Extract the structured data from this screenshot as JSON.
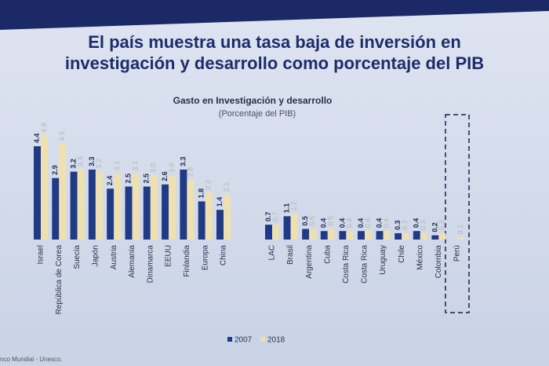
{
  "chart_data": {
    "type": "bar",
    "title": "El país muestra una tasa baja de inversión en investigación y desarrollo como porcentaje del PIB",
    "subtitle": "Gasto en Investigación y desarrollo",
    "subtitle2": "(Porcentaje del PIB)",
    "source": "nco Mundial - Unesco.",
    "categories": [
      "Israel",
      "República de Corea",
      "Suecia",
      "Japón",
      "Austria",
      "Alemania",
      "Dinamarca",
      "EEUU",
      "Finlandia",
      "Europa",
      "China",
      "LAC",
      "Brasil",
      "Argentina",
      "Cuba",
      "Costa Rica",
      "Costa Rica",
      "Uruguay",
      "Chile",
      "México",
      "Colombia",
      "Perú"
    ],
    "series": [
      {
        "name": "2007",
        "color": "#1f3a87",
        "values": [
          4.4,
          2.9,
          3.2,
          3.3,
          2.4,
          2.5,
          2.5,
          2.6,
          3.3,
          1.8,
          1.4,
          0.7,
          1.1,
          0.5,
          0.4,
          0.4,
          0.4,
          0.4,
          0.3,
          0.4,
          0.2,
          null
        ],
        "value_labels": [
          "4.4",
          "2.9",
          "3.2",
          "3.3",
          "2.4",
          "2.5",
          "2.5",
          "2.6",
          "3.3",
          "1.8",
          "1.4",
          "0.7",
          "1.1",
          "0.5",
          "0.4",
          "0.4",
          "0.4",
          "0.4",
          "0.3",
          "0.4",
          "0.2",
          null
        ]
      },
      {
        "name": "2018",
        "color": "#efe0b0",
        "values": [
          4.9,
          4.5,
          3.3,
          3.2,
          3.1,
          3.1,
          3.0,
          3.0,
          2.8,
          2.2,
          2.1,
          0.7,
          1.2,
          0.5,
          0.5,
          0.4,
          0.4,
          0.4,
          0.3,
          0.3,
          0.3,
          0.1
        ],
        "value_labels": [
          "4.9",
          "4.5",
          "3.3",
          "3.2",
          "3.1",
          "3.1",
          "3.0",
          "3.0",
          "2.8",
          "2.2",
          "2.1",
          "0.7",
          "1.2",
          "0.5",
          "0.5",
          "0.4",
          "0.4",
          "0.4",
          "0.3",
          "0.3",
          "0.3",
          "0.1"
        ]
      }
    ],
    "legend": "bottom"
  }
}
